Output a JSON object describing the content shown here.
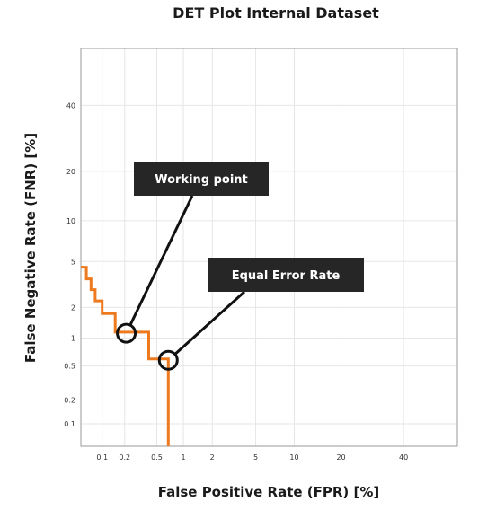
{
  "chart_data": {
    "type": "line",
    "title": "DET Plot Internal Dataset",
    "xlabel": "False Positive Rate (FPR) [%]",
    "ylabel": "False Negative Rate (FNR) [%]",
    "x_scale": "probit",
    "y_scale": "probit",
    "xlim": [
      0.05,
      60
    ],
    "ylim": [
      0.05,
      60
    ],
    "x_ticks": [
      0.1,
      0.2,
      0.5,
      1,
      2,
      5,
      10,
      20,
      40
    ],
    "x_tick_labels": [
      "0.1",
      "0.2",
      "0.5",
      "1",
      "2",
      "5",
      "10",
      "20",
      "40"
    ],
    "y_ticks": [
      0.1,
      0.2,
      0.5,
      1,
      2,
      5,
      10,
      20,
      40
    ],
    "y_tick_labels": [
      "0.1",
      "0.2",
      "0.5",
      "1",
      "2",
      "5",
      "10",
      "20",
      "40"
    ],
    "grid": true,
    "series": [
      {
        "color": "#ee7a1f",
        "x": [
          0.05,
          0.06,
          0.06,
          0.07,
          0.07,
          0.08,
          0.08,
          0.1,
          0.1,
          0.15,
          0.15,
          0.4,
          0.4,
          0.68,
          0.68
        ],
        "y": [
          4.5,
          4.5,
          3.6,
          3.6,
          2.9,
          2.9,
          2.3,
          2.3,
          1.75,
          1.75,
          1.15,
          1.15,
          0.6,
          0.6,
          0.05
        ]
      }
    ],
    "annotations": [
      {
        "text": "Working point",
        "x": 0.21,
        "y": 1.12
      },
      {
        "text": "Equal Error Rate",
        "x": 0.68,
        "y": 0.58
      }
    ]
  }
}
